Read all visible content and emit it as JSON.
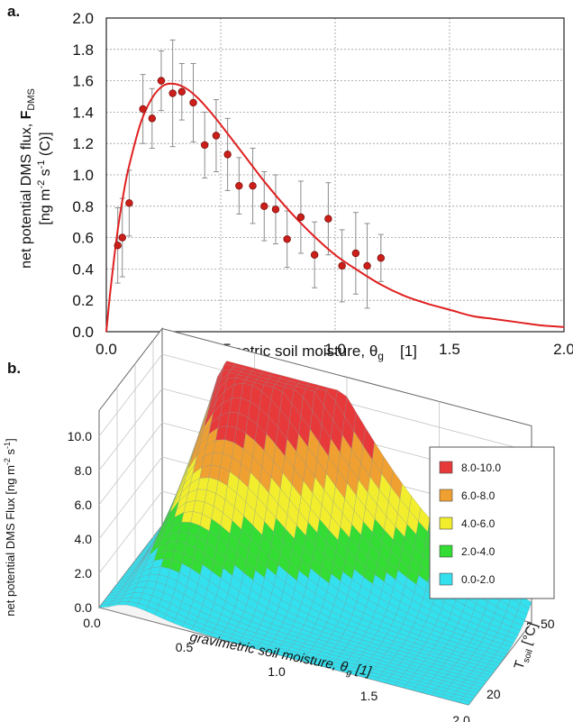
{
  "chart_data": [
    {
      "panel": "a.",
      "type": "scatter",
      "xlabel": "gravimetric soil moisture, θ",
      "xlabel_sub": "g",
      "xlabel_unit": "[1]",
      "ylabel_line1": "net potential DMS flux, ",
      "ylabel_bold": "F",
      "ylabel_sub": "DMS",
      "ylabel_line2_pre": "[ng m",
      "ylabel_sup1": "-2",
      "ylabel_mid": " s",
      "ylabel_sup2": "-1",
      "ylabel_end": " (C)]",
      "xlim": [
        0,
        2
      ],
      "ylim": [
        0,
        2
      ],
      "x_ticks": [
        "0.0",
        "0.5",
        "1.0",
        "1.5",
        "2.0"
      ],
      "y_ticks": [
        "0.0",
        "0.2",
        "0.4",
        "0.6",
        "0.8",
        "1.0",
        "1.2",
        "1.4",
        "1.6",
        "1.8",
        "2.0"
      ],
      "grid": true,
      "colors": {
        "points": "#cc1f1a",
        "fit": "#e02020",
        "errorbars": "#8c8c8c"
      },
      "series": [
        {
          "kind": "points_with_error",
          "x": [
            0.05,
            0.07,
            0.1,
            0.16,
            0.2,
            0.24,
            0.29,
            0.33,
            0.38,
            0.43,
            0.48,
            0.53,
            0.58,
            0.64,
            0.69,
            0.74,
            0.79,
            0.85,
            0.91,
            0.97,
            1.03,
            1.09,
            1.14,
            1.2
          ],
          "y": [
            0.55,
            0.6,
            0.82,
            1.42,
            1.36,
            1.6,
            1.52,
            1.53,
            1.46,
            1.19,
            1.25,
            1.13,
            0.93,
            0.93,
            0.8,
            0.78,
            0.59,
            0.73,
            0.49,
            0.72,
            0.42,
            0.5,
            0.42,
            0.47
          ],
          "err": [
            0.24,
            0.25,
            0.21,
            0.22,
            0.19,
            0.19,
            0.34,
            0.18,
            0.25,
            0.21,
            0.23,
            0.23,
            0.18,
            0.24,
            0.22,
            0.22,
            0.18,
            0.23,
            0.21,
            0.23,
            0.23,
            0.26,
            0.27,
            0.15
          ]
        },
        {
          "kind": "fit_curve",
          "x": [
            0.0,
            0.02,
            0.05,
            0.08,
            0.1,
            0.15,
            0.2,
            0.25,
            0.3,
            0.35,
            0.4,
            0.45,
            0.5,
            0.6,
            0.7,
            0.8,
            0.9,
            1.0,
            1.1,
            1.2,
            1.3,
            1.4,
            1.5,
            1.6,
            1.7,
            1.8,
            1.9,
            2.0
          ],
          "y": [
            0.0,
            0.29,
            0.65,
            0.92,
            1.06,
            1.33,
            1.49,
            1.57,
            1.58,
            1.55,
            1.49,
            1.41,
            1.32,
            1.13,
            0.94,
            0.77,
            0.62,
            0.49,
            0.39,
            0.3,
            0.23,
            0.18,
            0.14,
            0.1,
            0.08,
            0.06,
            0.04,
            0.03
          ]
        }
      ]
    },
    {
      "panel": "b.",
      "type": "surface3d",
      "xlabel": "gravimetric soil moisture, θ",
      "xlabel_sub": "g",
      "xlabel_unit": " [1]",
      "ylabel_pre": "T",
      "ylabel_sub": "soil",
      "ylabel_unit": " [°C]",
      "zlabel_pre": "net potential DMS Flux [ng m",
      "zlabel_sup1": "-2",
      "zlabel_mid": " s",
      "zlabel_sup2": "-1",
      "zlabel_end": "]",
      "x_ticks": [
        "0.0",
        "0.5",
        "1.0",
        "1.5",
        "2.0"
      ],
      "y_ticks": [
        "20",
        "50"
      ],
      "z_ticks": [
        "0.0",
        "2.0",
        "4.0",
        "6.0",
        "8.0",
        "10.0"
      ],
      "xlim": [
        0,
        2
      ],
      "ylim": [
        15,
        50
      ],
      "zlim": [
        0,
        10
      ],
      "legend": [
        {
          "label": "8.0-10.0",
          "color": "#e8393a"
        },
        {
          "label": "6.0-8.0",
          "color": "#f0a030"
        },
        {
          "label": "4.0-6.0",
          "color": "#f2ee2e"
        },
        {
          "label": "2.0-4.0",
          "color": "#33dd33"
        },
        {
          "label": "0.0-2.0",
          "color": "#33e0ee"
        }
      ],
      "legend_position": "right"
    }
  ]
}
